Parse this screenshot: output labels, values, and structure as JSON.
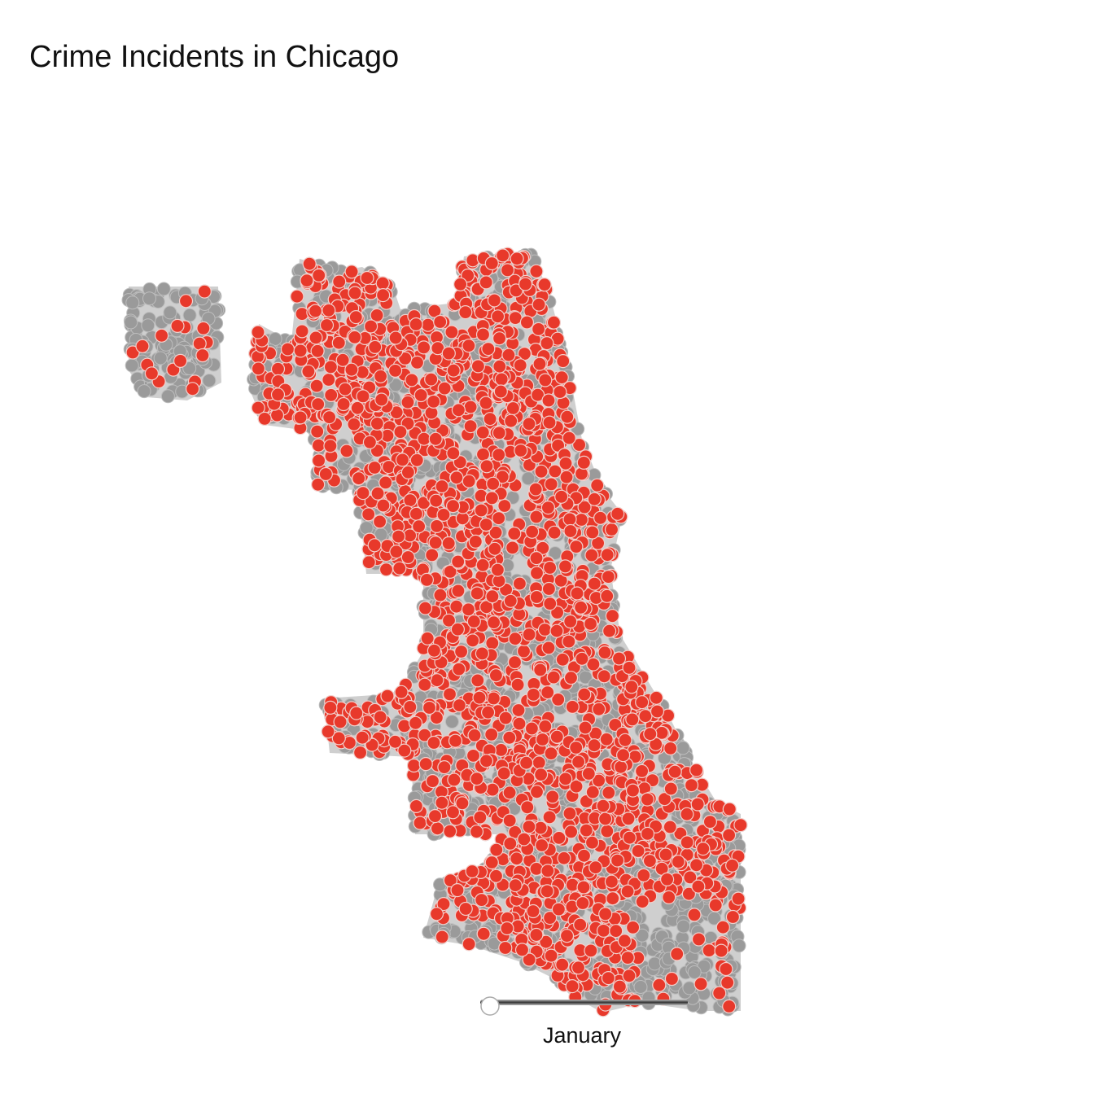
{
  "title": "Crime Incidents in Chicago",
  "slider": {
    "label": "January"
  }
}
